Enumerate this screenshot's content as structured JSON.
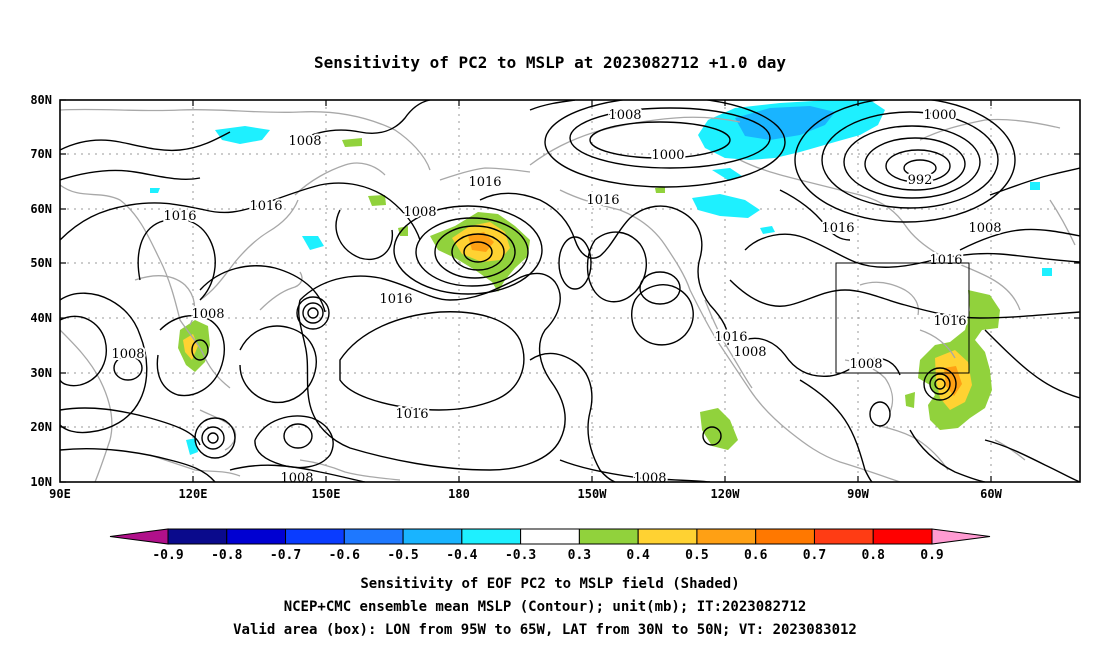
{
  "title": "Sensitivity of PC2 to MSLP at 2023082712 +1.0 day",
  "lat_ticks": [
    "80N",
    "70N",
    "60N",
    "50N",
    "40N",
    "30N",
    "20N",
    "10N"
  ],
  "lon_ticks": [
    "90E",
    "120E",
    "150E",
    "180",
    "150W",
    "120W",
    "90W",
    "60W"
  ],
  "colorbar": {
    "labels": [
      "-0.9",
      "-0.8",
      "-0.7",
      "-0.6",
      "-0.5",
      "-0.4",
      "-0.3",
      "0.3",
      "0.4",
      "0.5",
      "0.6",
      "0.7",
      "0.8",
      "0.9"
    ],
    "colors": [
      "#b0108a",
      "#0a0a8c",
      "#0000d2",
      "#0a3cff",
      "#1e78ff",
      "#19b4ff",
      "#1ef0ff",
      "#ffffff",
      "#91d23c",
      "#ffd232",
      "#ffa014",
      "#ff7800",
      "#ff3c14",
      "#ff0000",
      "#ff9bd2"
    ]
  },
  "contour_labels": [
    {
      "text": "1008"
    },
    {
      "text": "1000"
    },
    {
      "text": "1000"
    },
    {
      "text": "992"
    },
    {
      "text": "1008"
    },
    {
      "text": "1016"
    },
    {
      "text": "1016"
    },
    {
      "text": "1008"
    },
    {
      "text": "1016"
    },
    {
      "text": "1016"
    },
    {
      "text": "1016"
    },
    {
      "text": "1008"
    },
    {
      "text": "1016"
    },
    {
      "text": "1016"
    },
    {
      "text": "1008"
    },
    {
      "text": "1008"
    },
    {
      "text": "1016"
    },
    {
      "text": "1008"
    },
    {
      "text": "1016"
    },
    {
      "text": "1008"
    },
    {
      "text": "1008"
    },
    {
      "text": "1016"
    },
    {
      "text": "1008"
    }
  ],
  "caption": [
    "Sensitivity of EOF PC2 to MSLP field (Shaded)",
    "NCEP+CMC ensemble mean MSLP (Contour); unit(mb); IT:2023082712",
    "Valid area (box): LON from 95W to 65W, LAT from 30N to 50N; VT: 2023083012"
  ],
  "colors": {
    "coastline": "#a8a8a8",
    "contour": "#000000",
    "neg_03_04": "#1ef0ff",
    "neg_04_05": "#19b4ff",
    "pos_03_04": "#91d23c",
    "pos_04_05": "#ffd232",
    "pos_05_06": "#ffa014"
  }
}
